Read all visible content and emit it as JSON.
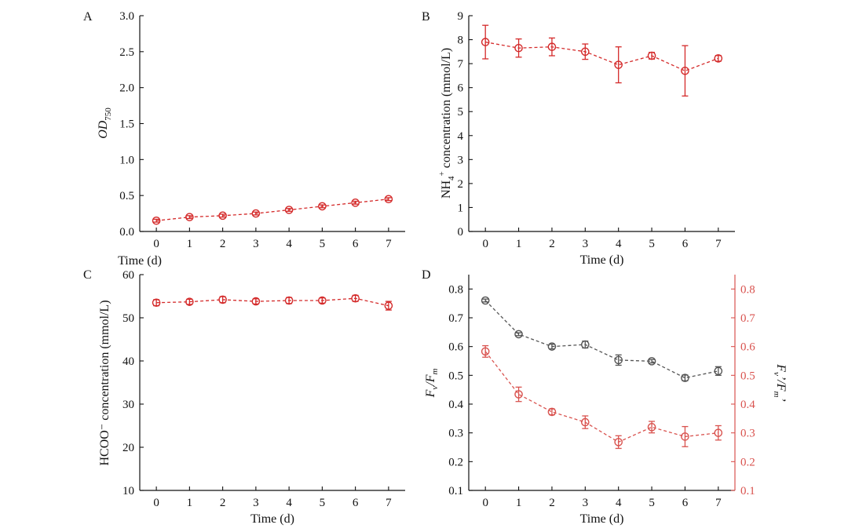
{
  "chart_data": [
    {
      "type": "line",
      "panel_label": "A",
      "xlabel": "Time (d)",
      "ylabel_main": "OD",
      "ylabel_sub": "750",
      "categories": [
        "0",
        "1",
        "2",
        "3",
        "4",
        "5",
        "6",
        "7"
      ],
      "x": [
        0,
        1,
        2,
        3,
        4,
        5,
        6,
        7
      ],
      "xlim": [
        -0.5,
        7.5
      ],
      "ylim": [
        0,
        3.0
      ],
      "yticks": [
        "0.0",
        "0.5",
        "1.0",
        "1.5",
        "2.0",
        "2.5",
        "3.0"
      ],
      "series": [
        {
          "name": "OD750",
          "color": "#d42a2a",
          "axis": "left",
          "values": [
            0.15,
            0.2,
            0.22,
            0.25,
            0.3,
            0.35,
            0.4,
            0.45
          ],
          "errors": [
            0.02,
            0.02,
            0.02,
            0.02,
            0.02,
            0.02,
            0.02,
            0.02
          ]
        }
      ]
    },
    {
      "type": "line",
      "panel_label": "B",
      "xlabel": "Time (d)",
      "ylabel_pre": "NH",
      "ylabel_sub": "4",
      "ylabel_sup": "+",
      "ylabel_post": " concentration (mmol/L)",
      "categories": [
        "0",
        "1",
        "2",
        "3",
        "4",
        "5",
        "6",
        "7"
      ],
      "x": [
        0,
        1,
        2,
        3,
        4,
        5,
        6,
        7
      ],
      "xlim": [
        -0.5,
        7.5
      ],
      "ylim": [
        0,
        9
      ],
      "yticks": [
        "0",
        "1",
        "2",
        "3",
        "4",
        "5",
        "6",
        "7",
        "8",
        "9"
      ],
      "series": [
        {
          "name": "NH4+",
          "color": "#d42a2a",
          "axis": "left",
          "values": [
            7.9,
            7.65,
            7.7,
            7.5,
            6.95,
            7.33,
            6.7,
            7.22
          ],
          "errors": [
            0.7,
            0.38,
            0.37,
            0.32,
            0.75,
            0.14,
            1.05,
            0.12
          ]
        }
      ]
    },
    {
      "type": "line",
      "panel_label": "C",
      "xlabel": "Time (d)",
      "ylabel": "HCOO⁻ concentration (mmol/L)",
      "categories": [
        "0",
        "1",
        "2",
        "3",
        "4",
        "5",
        "6",
        "7"
      ],
      "x": [
        0,
        1,
        2,
        3,
        4,
        5,
        6,
        7
      ],
      "xlim": [
        -0.5,
        7.5
      ],
      "ylim": [
        10,
        60
      ],
      "yticks": [
        "10",
        "20",
        "30",
        "40",
        "50",
        "60"
      ],
      "series": [
        {
          "name": "HCOO-",
          "color": "#d42a2a",
          "axis": "left",
          "values": [
            53.5,
            53.7,
            54.2,
            53.8,
            54.0,
            54.0,
            54.5,
            52.8
          ],
          "errors": [
            0.7,
            0.6,
            0.7,
            0.6,
            0.7,
            0.6,
            0.7,
            1.0
          ]
        }
      ]
    },
    {
      "type": "line",
      "panel_label": "D",
      "xlabel": "Time (d)",
      "ylabel_left": "Fv/Fm",
      "ylabel_right": "Fv'/Fm'",
      "categories": [
        "0",
        "1",
        "2",
        "3",
        "4",
        "5",
        "6",
        "7"
      ],
      "x": [
        0,
        1,
        2,
        3,
        4,
        5,
        6,
        7
      ],
      "xlim": [
        -0.5,
        7.5
      ],
      "ylim": [
        0.1,
        0.85
      ],
      "yticks": [
        "0.1",
        "0.2",
        "0.3",
        "0.4",
        "0.5",
        "0.6",
        "0.7",
        "0.8"
      ],
      "ylim_right": [
        0.1,
        0.85
      ],
      "yticks_right": [
        "0.1",
        "0.2",
        "0.3",
        "0.4",
        "0.5",
        "0.6",
        "0.7",
        "0.8"
      ],
      "right_axis_color": "#d9534f",
      "series": [
        {
          "name": "Fv/Fm",
          "color": "#555555",
          "axis": "left",
          "values": [
            0.76,
            0.643,
            0.6,
            0.607,
            0.553,
            0.549,
            0.491,
            0.515
          ],
          "errors": [
            0.005,
            0.005,
            0.008,
            0.012,
            0.018,
            0.006,
            0.01,
            0.015
          ]
        },
        {
          "name": "Fv'/Fm'",
          "color": "#d9534f",
          "axis": "right",
          "values": [
            0.583,
            0.434,
            0.373,
            0.337,
            0.268,
            0.32,
            0.287,
            0.3
          ],
          "errors": [
            0.02,
            0.025,
            0.01,
            0.022,
            0.022,
            0.02,
            0.035,
            0.025
          ]
        }
      ]
    }
  ]
}
